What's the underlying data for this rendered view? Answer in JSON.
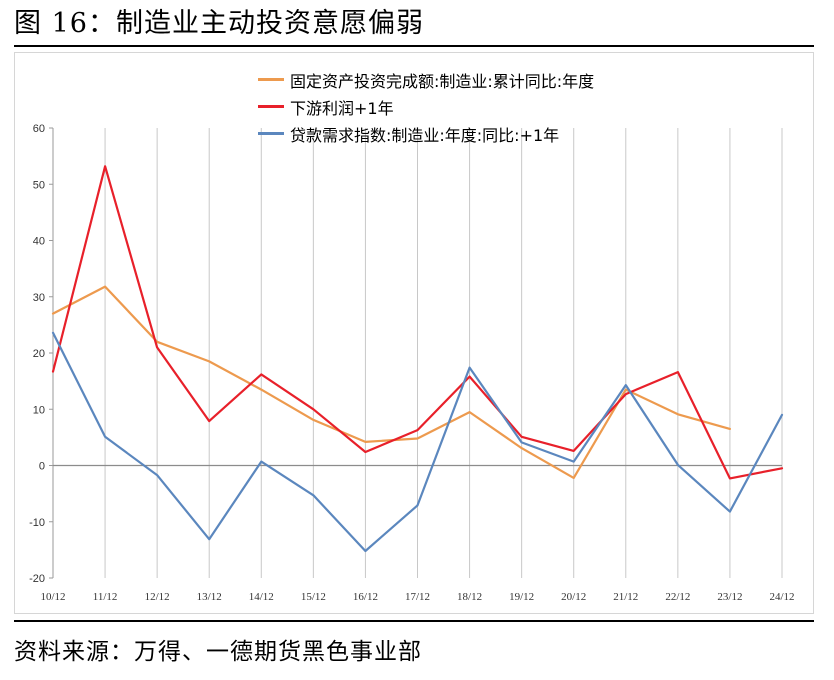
{
  "figure": {
    "title": "图 16：制造业主动投资意愿偏弱",
    "source": "资料来源：万得、一德期货黑色事业部"
  },
  "chart_data": {
    "type": "line",
    "categories": [
      "10/12",
      "11/12",
      "12/12",
      "13/12",
      "14/12",
      "15/12",
      "16/12",
      "17/12",
      "18/12",
      "19/12",
      "20/12",
      "21/12",
      "22/12",
      "23/12",
      "24/12"
    ],
    "ylim": [
      -20,
      60
    ],
    "yticks": [
      -20,
      -10,
      0,
      10,
      20,
      30,
      40,
      50,
      60
    ],
    "grid": "vertical",
    "legend_position": "top-center",
    "series": [
      {
        "name": "固定资产投资完成额:制造业:累计同比:年度",
        "color": "#ED9A4E",
        "values": [
          27,
          31.8,
          22,
          18.5,
          13.5,
          8.1,
          4.2,
          4.8,
          9.5,
          3.1,
          -2.2,
          13.5,
          9.1,
          6.5,
          null
        ]
      },
      {
        "name": "下游利润+1年",
        "color": "#E8202A",
        "values": [
          16.7,
          53.2,
          21,
          7.9,
          16.2,
          10,
          2.4,
          6.3,
          15.8,
          5.1,
          2.6,
          12.7,
          16.6,
          -2.3,
          -0.5
        ]
      },
      {
        "name": "贷款需求指数:制造业:年度:同比:+1年",
        "color": "#5B87BE",
        "values": [
          23.6,
          5.1,
          -1.7,
          -13.1,
          0.7,
          -5.3,
          -15.2,
          -7.1,
          17.4,
          4.1,
          0.7,
          14.3,
          0.1,
          -8.2,
          9.0
        ]
      }
    ]
  }
}
